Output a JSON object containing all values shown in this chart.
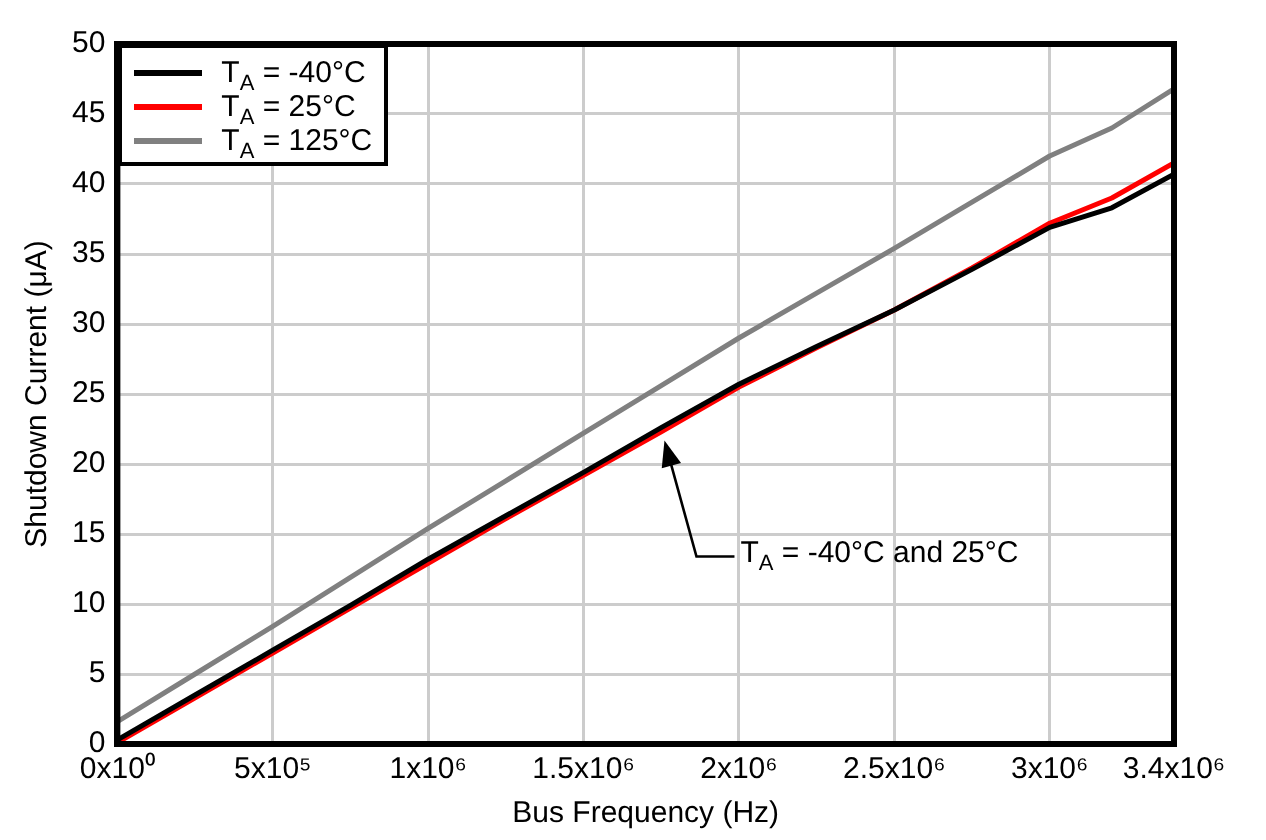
{
  "chart_data": {
    "type": "line",
    "xlabel": "Bus Frequency (Hz)",
    "ylabel": "Shutdown Current (μA)",
    "x": [
      0,
      250000,
      500000,
      750000,
      1000000,
      1250000,
      1500000,
      1750000,
      2000000,
      2250000,
      2500000,
      2750000,
      3000000,
      3200000,
      3400000
    ],
    "series": [
      {
        "name": "T$_{A}$ = -40°C",
        "color": "#000000",
        "values": [
          0.3,
          3.5,
          6.7,
          9.9,
          13.2,
          16.3,
          19.4,
          22.6,
          25.7,
          28.4,
          31.0,
          33.9,
          36.9,
          38.3,
          40.7
        ]
      },
      {
        "name": "T$_{A}$ = 25°C",
        "color": "#ff0000",
        "values": [
          0.1,
          3.3,
          6.5,
          9.7,
          12.9,
          16.1,
          19.2,
          22.3,
          25.5,
          28.3,
          31.0,
          34.0,
          37.2,
          39.0,
          41.5
        ]
      },
      {
        "name": "T$_{A}$ = 125°C",
        "color": "#808080",
        "values": [
          1.6,
          5.0,
          8.4,
          11.9,
          15.4,
          18.8,
          22.2,
          25.6,
          29.0,
          32.2,
          35.4,
          38.7,
          42.0,
          44.0,
          46.8
        ]
      }
    ],
    "xlim": [
      0,
      3400000
    ],
    "xticks": [
      {
        "value": 0,
        "label": "0x10⁰"
      },
      {
        "value": 500000,
        "label": "5x10⁵"
      },
      {
        "value": 1000000,
        "label": "1x10⁶"
      },
      {
        "value": 1500000,
        "label": "1.5x10⁶"
      },
      {
        "value": 2000000,
        "label": "2x10⁶"
      },
      {
        "value": 2500000,
        "label": "2.5x10⁶"
      },
      {
        "value": 3000000,
        "label": "3x10⁶"
      },
      {
        "value": 3400000,
        "label": "3.4x10⁶"
      }
    ],
    "ylim": [
      0,
      50
    ],
    "yticks": [
      0,
      5,
      10,
      15,
      20,
      25,
      30,
      35,
      40,
      45,
      50
    ],
    "grid": true,
    "legend": "top left",
    "marker": "none",
    "line_style": "solid",
    "annotations": [
      "T$_{A}$ = -40°C and 25°C"
    ]
  }
}
